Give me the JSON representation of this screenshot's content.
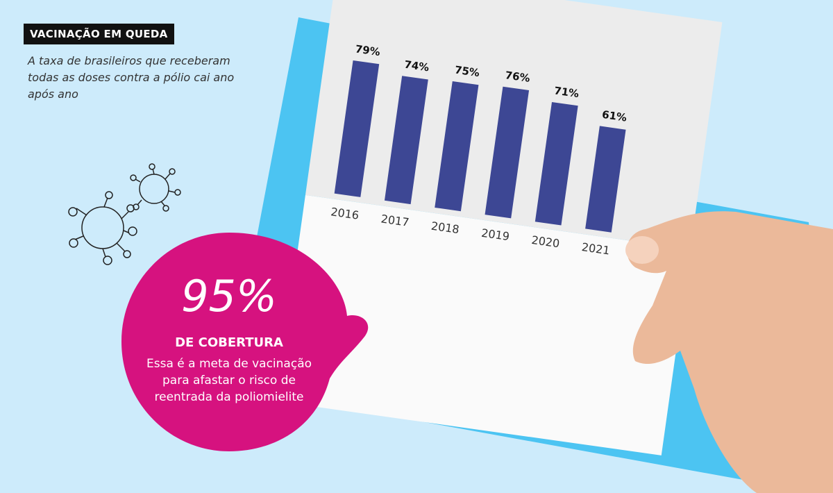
{
  "chart_data": {
    "type": "bar",
    "title": "VACINAÇÃO EM QUEDA",
    "subtitle": "A taxa de brasileiros que receberam todas as doses contra a pólio cai ano após ano",
    "categories": [
      "2016",
      "2017",
      "2018",
      "2019",
      "2020",
      "2021"
    ],
    "values": [
      79,
      74,
      75,
      76,
      71,
      61
    ],
    "value_labels": [
      "79%",
      "74%",
      "75%",
      "76%",
      "71%",
      "61%"
    ],
    "color": "#3d4794",
    "ylim": [
      0,
      100
    ],
    "callout": {
      "value": "95%",
      "heading": "DE COBERTURA",
      "text": "Essa é a meta de vacinação para afastar o risco de reentrada da poliomielite"
    }
  }
}
